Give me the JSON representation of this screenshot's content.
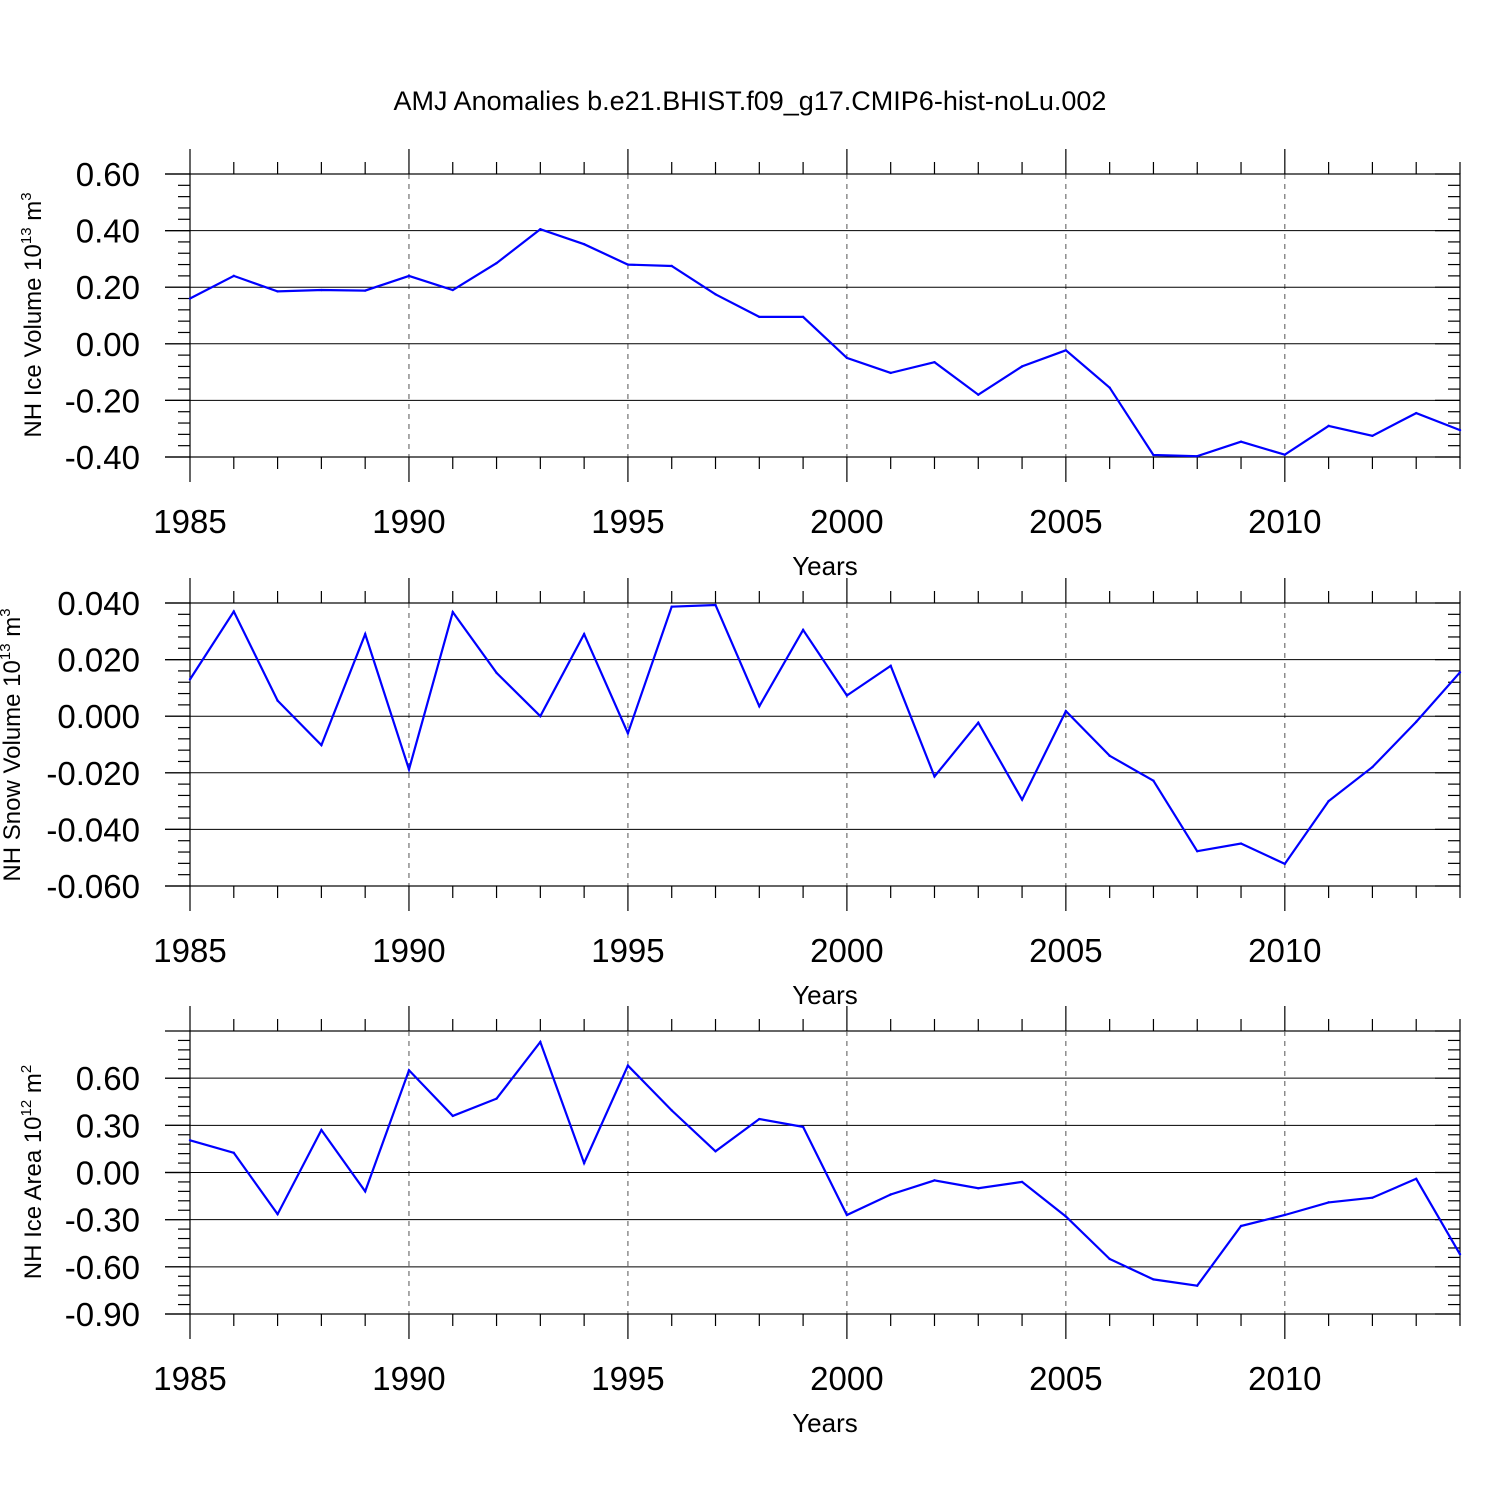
{
  "figure": {
    "title": "AMJ Anomalies b.e21.BHIST.f09_g17.CMIP6-hist-noLu.002"
  },
  "chart_data": [
    {
      "type": "line",
      "title": "AMJ Anomalies b.e21.BHIST.f09_g17.CMIP6-hist-noLu.002",
      "xlabel": "Years",
      "ylabel": {
        "main": "NH Ice Volume 10",
        "exp": "13",
        "unit": " m",
        "unit_exp": "3"
      },
      "xlim": [
        1985,
        2014
      ],
      "ylim": [
        -0.4,
        0.6
      ],
      "xticks": [
        "1985",
        "1990",
        "1995",
        "2000",
        "2005",
        "2010"
      ],
      "yticks": [
        "0.60",
        "0.40",
        "0.20",
        "0.00",
        "-0.20",
        "-0.40"
      ],
      "ytick_values": [
        0.6,
        0.4,
        0.2,
        0.0,
        -0.2,
        -0.4
      ],
      "grid": "vertical dashed at major x ticks",
      "line_color": "#0000ff",
      "x": [
        1985,
        1986,
        1987,
        1988,
        1989,
        1990,
        1991,
        1992,
        1993,
        1994,
        1995,
        1996,
        1997,
        1998,
        1999,
        2000,
        2001,
        2002,
        2003,
        2004,
        2005,
        2006,
        2007,
        2008,
        2009,
        2010,
        2011,
        2012,
        2013,
        2014
      ],
      "values": [
        0.16,
        0.24,
        0.185,
        0.19,
        0.188,
        0.24,
        0.19,
        0.285,
        0.405,
        0.352,
        0.28,
        0.275,
        0.175,
        0.095,
        0.095,
        -0.05,
        -0.103,
        -0.065,
        -0.18,
        -0.08,
        -0.023,
        -0.155,
        -0.393,
        -0.397,
        -0.346,
        -0.392,
        -0.29,
        -0.325,
        -0.245,
        -0.305
      ]
    },
    {
      "type": "line",
      "xlabel": "Years",
      "ylabel": {
        "main": "NH Snow Volume 10",
        "exp": "13",
        "unit": " m",
        "unit_exp": "3"
      },
      "xlim": [
        1985,
        2014
      ],
      "ylim": [
        -0.06,
        0.04
      ],
      "xticks": [
        "1985",
        "1990",
        "1995",
        "2000",
        "2005",
        "2010"
      ],
      "yticks": [
        "0.040",
        "0.020",
        "0.000",
        "-0.020",
        "-0.040",
        "-0.060"
      ],
      "ytick_values": [
        0.04,
        0.02,
        0.0,
        -0.02,
        -0.04,
        -0.06
      ],
      "grid": "vertical dashed at major x ticks",
      "line_color": "#0000ff",
      "x": [
        1985,
        1986,
        1987,
        1988,
        1989,
        1990,
        1991,
        1992,
        1993,
        1994,
        1995,
        1996,
        1997,
        1998,
        1999,
        2000,
        2001,
        2002,
        2003,
        2004,
        2005,
        2006,
        2007,
        2008,
        2009,
        2010,
        2011,
        2012,
        2013,
        2014
      ],
      "values": [
        0.013,
        0.037,
        0.0055,
        -0.0102,
        0.029,
        -0.0188,
        0.0368,
        0.0153,
        0.0,
        0.029,
        -0.006,
        0.0387,
        0.0393,
        0.0035,
        0.0305,
        0.0073,
        0.0178,
        -0.0213,
        -0.0023,
        -0.0295,
        0.0018,
        -0.014,
        -0.0228,
        -0.0477,
        -0.045,
        -0.0522,
        -0.03,
        -0.018,
        -0.002,
        0.0155
      ]
    },
    {
      "type": "line",
      "xlabel": "Years",
      "ylabel": {
        "main": "NH Ice Area 10",
        "exp": "12",
        "unit": " m",
        "unit_exp": "2"
      },
      "xlim": [
        1985,
        2014
      ],
      "ylim": [
        -0.9,
        0.9
      ],
      "xticks": [
        "1985",
        "1990",
        "1995",
        "2000",
        "2005",
        "2010"
      ],
      "yticks": [
        "0.60",
        "0.30",
        "0.00",
        "-0.30",
        "-0.60",
        "-0.90"
      ],
      "ytick_values": [
        0.6,
        0.3,
        0.0,
        -0.3,
        -0.6,
        -0.9
      ],
      "grid": "vertical dashed at major x ticks",
      "line_color": "#0000ff",
      "x": [
        1985,
        1986,
        1987,
        1988,
        1989,
        1990,
        1991,
        1992,
        1993,
        1994,
        1995,
        1996,
        1997,
        1998,
        1999,
        2000,
        2001,
        2002,
        2003,
        2004,
        2005,
        2006,
        2007,
        2008,
        2009,
        2010,
        2011,
        2012,
        2013,
        2014
      ],
      "values": [
        0.205,
        0.125,
        -0.265,
        0.27,
        -0.12,
        0.65,
        0.36,
        0.47,
        0.83,
        0.06,
        0.68,
        0.395,
        0.135,
        0.34,
        0.29,
        -0.27,
        -0.14,
        -0.05,
        -0.1,
        -0.06,
        -0.28,
        -0.55,
        -0.68,
        -0.72,
        -0.34,
        -0.27,
        -0.19,
        -0.16,
        -0.04,
        -0.52
      ]
    }
  ]
}
